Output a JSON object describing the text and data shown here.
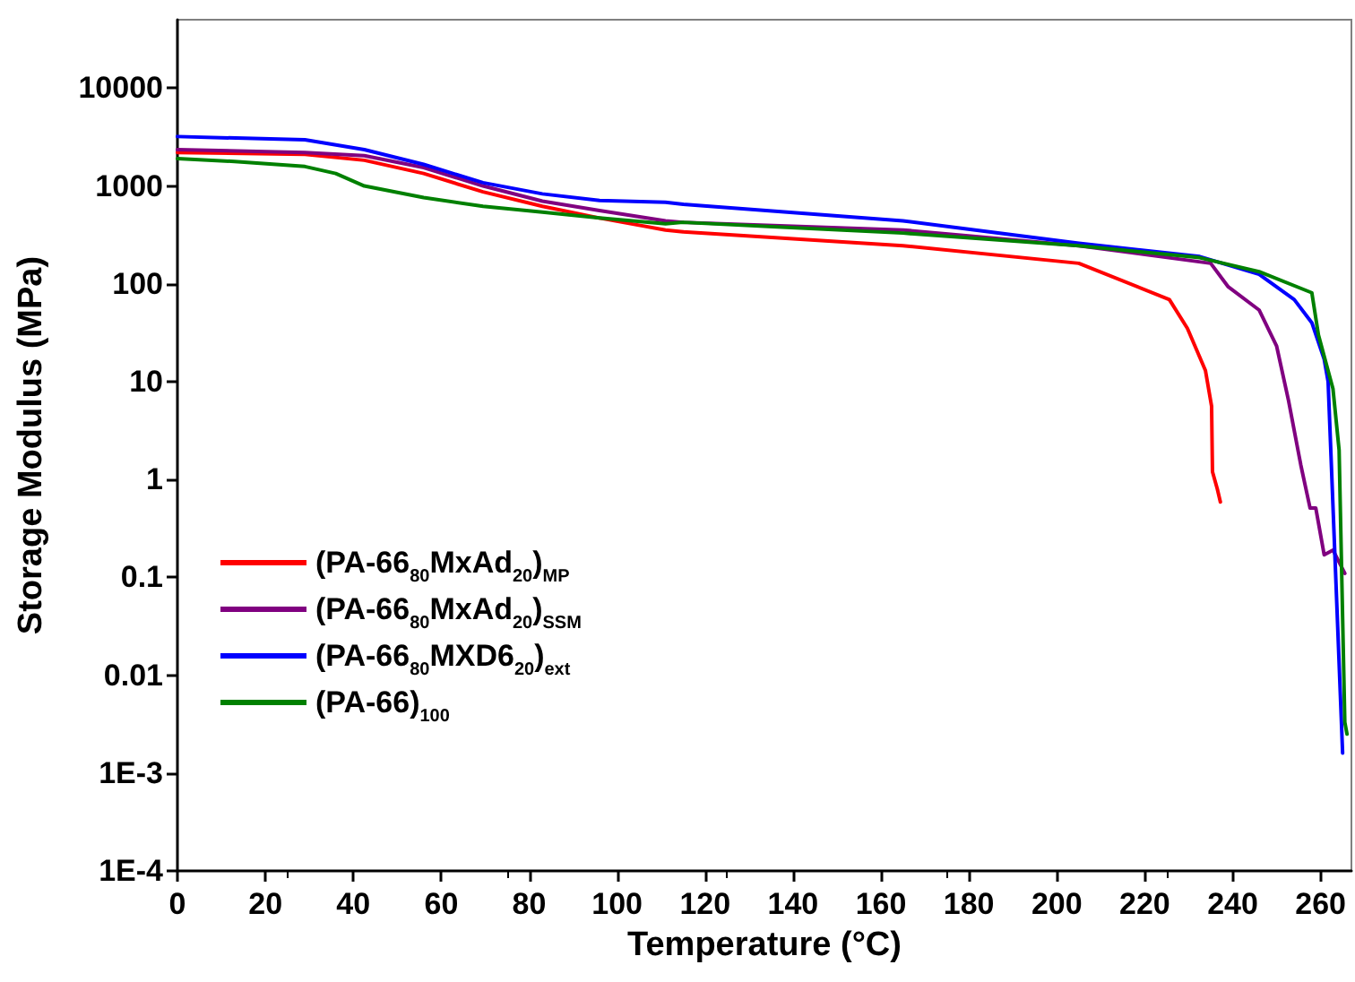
{
  "chart_data": {
    "type": "line",
    "xlabel": "Temperature (°C)",
    "ylabel": "Storage Modulus (MPa)",
    "log": "y",
    "xlim": [
      0,
      267
    ],
    "xticks": [
      0,
      20,
      40,
      60,
      80,
      100,
      120,
      140,
      160,
      180,
      200,
      220,
      240,
      260
    ],
    "ylim": [
      0.0001,
      50000
    ],
    "yticks": [
      {
        "value": 0.0001,
        "label": "1E-4"
      },
      {
        "value": 0.001,
        "label": "1E-3"
      },
      0.01,
      0.1,
      1,
      10,
      100,
      1000,
      10000
    ],
    "grid": false,
    "legend": "bottom left",
    "marker": "none",
    "line_style": "solid",
    "series": [
      {
        "name": "(PA-66$_{80}$MxAd$_{20}$)$_{MP}$",
        "color": "#ff0000",
        "x": [
          0,
          29,
          42.5,
          56,
          69.5,
          83,
          96,
          111,
          115,
          165,
          205,
          225.6,
          229.7,
          233.8,
          235.2,
          235.4,
          236.5,
          237.2
        ],
        "values": [
          2200,
          2100,
          1830,
          1340,
          870,
          620,
          470,
          355,
          340,
          245,
          162,
          69,
          35,
          13,
          5.6,
          1.2,
          0.8,
          0.59
        ]
      },
      {
        "name": "(PA-66$_{80}$MxAd$_{20}$)$_{SSM}$",
        "color": "#800080",
        "x": [
          0,
          29,
          42.5,
          56,
          69.5,
          83,
          96,
          111,
          115,
          165,
          205,
          235,
          239,
          246,
          250,
          252.7,
          255.5,
          257.6,
          258.9,
          260.8,
          262.8,
          265.5
        ],
        "values": [
          2350,
          2200,
          2040,
          1540,
          1000,
          700,
          560,
          440,
          425,
          355,
          245,
          162,
          93,
          54,
          23,
          6.4,
          1.4,
          0.51,
          0.51,
          0.17,
          0.19,
          0.11
        ]
      },
      {
        "name": "(PA-66$_{80}$MXD6$_{20}$)$_{ext}$",
        "color": "#0000ff",
        "x": [
          0,
          29,
          42.5,
          56,
          69.5,
          83,
          96,
          111,
          115,
          165,
          205,
          232.5,
          246,
          254,
          258,
          260.8,
          261.7,
          265
        ],
        "values": [
          3200,
          2960,
          2350,
          1660,
          1080,
          830,
          710,
          680,
          650,
          440,
          260,
          190,
          125,
          69,
          40,
          17,
          10,
          0.0016
        ]
      },
      {
        "name": "(PA-66)$_{100}$",
        "color": "#008000",
        "x": [
          0,
          13,
          29,
          36,
          42.5,
          56,
          69.5,
          83,
          96,
          111,
          115,
          165,
          205,
          232.5,
          246,
          258,
          259.5,
          262.8,
          264.2,
          265.5,
          266
        ],
        "values": [
          1900,
          1780,
          1580,
          1340,
          1000,
          760,
          620,
          540,
          470,
          410,
          425,
          330,
          245,
          185,
          133,
          81,
          30,
          8.5,
          2,
          0.0033,
          0.0025
        ]
      }
    ]
  }
}
